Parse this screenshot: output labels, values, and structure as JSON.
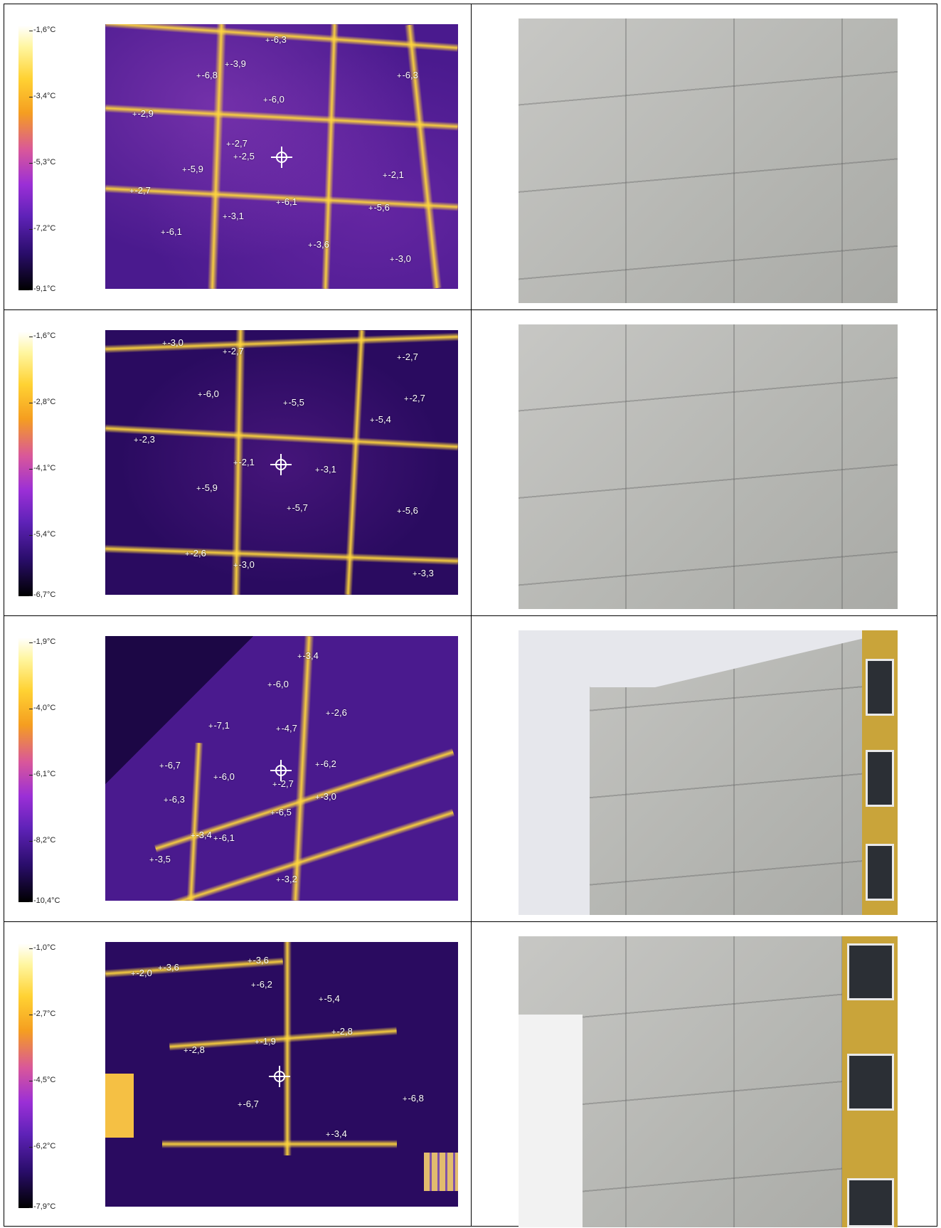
{
  "rows": [
    {
      "scale": [
        "-1,6°C",
        "-3,4°C",
        "-5,3°C",
        "-7,2°C",
        "-9,1°C"
      ],
      "readings": [
        "-6,3",
        "-3,9",
        "-6,8",
        "-6,3",
        "-6,0",
        "-2,9",
        "-2,7",
        "-2,5",
        "-5,9",
        "-2,1",
        "-2,7",
        "-6,1",
        "-5,6",
        "-3,1",
        "-6,1",
        "-3,6",
        "-3,0"
      ]
    },
    {
      "scale": [
        "-1,6°C",
        "-2,8°C",
        "-4,1°C",
        "-5,4°C",
        "-6,7°C"
      ],
      "readings": [
        "-3,0",
        "-2,7",
        "-2,7",
        "-6,0",
        "-5,5",
        "-2,7",
        "-5,4",
        "-2,3",
        "-2,1",
        "-3,1",
        "-5,9",
        "-5,7",
        "-5,6",
        "-2,6",
        "-3,0",
        "-3,3"
      ]
    },
    {
      "scale": [
        "-1,9°C",
        "-4,0°C",
        "-6,1°C",
        "-8,2°C",
        "-10,4°C"
      ],
      "readings": [
        "-3,4",
        "-6,0",
        "-2,6",
        "-7,1",
        "-4,7",
        "-6,7",
        "-6,0",
        "-6,2",
        "-2,7",
        "-6,3",
        "-3,0",
        "-6,5",
        "-3,4",
        "-6,1",
        "-3,5",
        "-3,2"
      ]
    },
    {
      "scale": [
        "-1,0°C",
        "-2,7°C",
        "-4,5°C",
        "-6,2°C",
        "-7,9°C"
      ],
      "readings": [
        "-3,6",
        "-2,0",
        "-3,6",
        "-6,2",
        "-5,4",
        "-1,9",
        "-2,8",
        "-2,8",
        "-6,8",
        "-6,7",
        "-3,4"
      ]
    }
  ]
}
